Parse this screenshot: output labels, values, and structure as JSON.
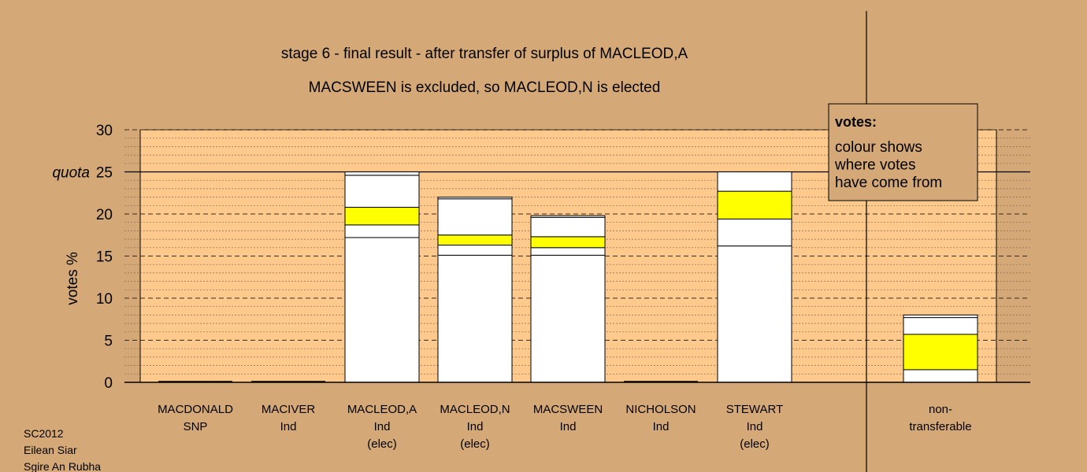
{
  "chart_data": {
    "type": "bar",
    "stacked": true,
    "title": "stage 6 - final result - after transfer of surplus of MACLEOD,A",
    "subtitle": "MACSWEEN is excluded, so MACLEOD,N is elected",
    "ylabel": "votes %",
    "ylim": [
      0,
      30
    ],
    "yticks": [
      "0",
      "5",
      "10",
      "15",
      "20",
      "25",
      "30"
    ],
    "quota": {
      "value": 25,
      "label": "quota"
    },
    "grid": "dotted minor every 1, dashed major every 5",
    "categories": [
      {
        "lines": [
          "MACDONALD",
          "SNP"
        ],
        "segments": []
      },
      {
        "lines": [
          "MACIVER",
          "Ind"
        ],
        "segments": []
      },
      {
        "lines": [
          "MACLEOD,A",
          "Ind",
          "(elec)"
        ],
        "segments": [
          {
            "value": 17.2,
            "color": "#ffffff"
          },
          {
            "value": 1.5,
            "color": "#ffffff"
          },
          {
            "value": 2.1,
            "color": "#ffff00"
          },
          {
            "value": 3.8,
            "color": "#ffffff"
          },
          {
            "value": 0.4,
            "color": "#ffffff"
          }
        ]
      },
      {
        "lines": [
          "MACLEOD,N",
          "Ind",
          "(elec)"
        ],
        "segments": [
          {
            "value": 15.1,
            "color": "#ffffff"
          },
          {
            "value": 1.2,
            "color": "#ffffff"
          },
          {
            "value": 1.2,
            "color": "#ffff00"
          },
          {
            "value": 4.3,
            "color": "#ffffff"
          },
          {
            "value": 0.2,
            "color": "#ffffff"
          }
        ]
      },
      {
        "lines": [
          "MACSWEEN",
          "Ind"
        ],
        "segments": [
          {
            "value": 15.1,
            "color": "#ffffff"
          },
          {
            "value": 0.9,
            "color": "#ffffff"
          },
          {
            "value": 1.3,
            "color": "#ffff00"
          },
          {
            "value": 2.3,
            "color": "#ffffff"
          },
          {
            "value": 0.2,
            "color": "#ffffff"
          }
        ]
      },
      {
        "lines": [
          "NICHOLSON",
          "Ind"
        ],
        "segments": []
      },
      {
        "lines": [
          "STEWART",
          "Ind",
          "(elec)"
        ],
        "segments": [
          {
            "value": 16.2,
            "color": "#ffffff"
          },
          {
            "value": 3.2,
            "color": "#ffffff"
          },
          {
            "value": 3.3,
            "color": "#ffff00"
          },
          {
            "value": 2.3,
            "color": "#ffffff"
          }
        ]
      },
      {
        "lines": [
          "non-",
          "transferable"
        ],
        "segments": [
          {
            "value": 1.5,
            "color": "#ffffff"
          },
          {
            "value": 4.2,
            "color": "#ffff00"
          },
          {
            "value": 2.0,
            "color": "#ffffff"
          },
          {
            "value": 0.3,
            "color": "#ffffff"
          }
        ]
      }
    ],
    "legend": {
      "title": "votes:",
      "lines": [
        "colour shows",
        "where votes",
        "have come from"
      ]
    }
  },
  "footer_notes": [
    "SC2012",
    "Eilean Siar",
    "Sgire An Rubha"
  ]
}
